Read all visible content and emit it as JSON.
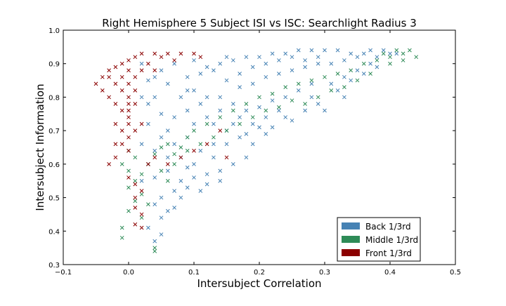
{
  "chart_data": {
    "type": "scatter",
    "title": "Right Hemisphere 5 Subject ISI vs ISC: Searchlight Radius 3",
    "xlabel": "Intersubject Correlation",
    "ylabel": "Intersubject Information",
    "xlim": [
      -0.1,
      0.5
    ],
    "ylim": [
      0.3,
      1.0
    ],
    "xticks": [
      "−0.1",
      "0.0",
      "0.1",
      "0.2",
      "0.3",
      "0.4",
      "0.5"
    ],
    "yticks": [
      "0.3",
      "0.4",
      "0.5",
      "0.6",
      "0.7",
      "0.8",
      "0.9",
      "1.0"
    ],
    "marker": "x",
    "grid": false,
    "legend_position": "bottom-right",
    "series": [
      {
        "name": "Back 1/3rd",
        "color": "#4682b4",
        "points": [
          [
            0.02,
            0.9
          ],
          [
            0.03,
            0.85
          ],
          [
            0.04,
            0.8
          ],
          [
            0.05,
            0.75
          ],
          [
            0.06,
            0.7
          ],
          [
            0.07,
            0.66
          ],
          [
            0.08,
            0.62
          ],
          [
            0.03,
            0.72
          ],
          [
            0.05,
            0.88
          ],
          [
            0.07,
            0.9
          ],
          [
            0.09,
            0.86
          ],
          [
            0.1,
            0.82
          ],
          [
            0.11,
            0.78
          ],
          [
            0.12,
            0.74
          ],
          [
            0.1,
            0.91
          ],
          [
            0.12,
            0.89
          ],
          [
            0.14,
            0.9
          ],
          [
            0.16,
            0.91
          ],
          [
            0.18,
            0.92
          ],
          [
            0.2,
            0.92
          ],
          [
            0.22,
            0.93
          ],
          [
            0.24,
            0.93
          ],
          [
            0.26,
            0.94
          ],
          [
            0.28,
            0.94
          ],
          [
            0.3,
            0.94
          ],
          [
            0.32,
            0.94
          ],
          [
            0.34,
            0.93
          ],
          [
            0.36,
            0.93
          ],
          [
            0.38,
            0.92
          ],
          [
            0.4,
            0.93
          ],
          [
            0.15,
            0.85
          ],
          [
            0.17,
            0.83
          ],
          [
            0.19,
            0.84
          ],
          [
            0.21,
            0.86
          ],
          [
            0.23,
            0.87
          ],
          [
            0.25,
            0.88
          ],
          [
            0.27,
            0.89
          ],
          [
            0.29,
            0.9
          ],
          [
            0.31,
            0.9
          ],
          [
            0.33,
            0.91
          ],
          [
            0.14,
            0.8
          ],
          [
            0.16,
            0.78
          ],
          [
            0.18,
            0.76
          ],
          [
            0.2,
            0.77
          ],
          [
            0.22,
            0.79
          ],
          [
            0.24,
            0.8
          ],
          [
            0.26,
            0.82
          ],
          [
            0.28,
            0.84
          ],
          [
            0.13,
            0.72
          ],
          [
            0.15,
            0.7
          ],
          [
            0.17,
            0.74
          ],
          [
            0.19,
            0.72
          ],
          [
            0.21,
            0.74
          ],
          [
            0.23,
            0.76
          ],
          [
            0.27,
            0.76
          ],
          [
            0.29,
            0.78
          ],
          [
            0.31,
            0.84
          ],
          [
            0.33,
            0.86
          ],
          [
            0.35,
            0.88
          ],
          [
            0.37,
            0.9
          ],
          [
            0.09,
            0.68
          ],
          [
            0.11,
            0.64
          ],
          [
            0.13,
            0.66
          ],
          [
            0.1,
            0.6
          ],
          [
            0.12,
            0.57
          ],
          [
            0.08,
            0.55
          ],
          [
            0.06,
            0.58
          ],
          [
            0.07,
            0.52
          ],
          [
            0.05,
            0.5
          ],
          [
            0.06,
            0.46
          ],
          [
            0.04,
            0.48
          ],
          [
            0.05,
            0.44
          ],
          [
            0.03,
            0.41
          ],
          [
            0.05,
            0.39
          ],
          [
            0.04,
            0.37
          ],
          [
            0.07,
            0.47
          ],
          [
            0.08,
            0.5
          ],
          [
            0.09,
            0.53
          ],
          [
            0.1,
            0.56
          ],
          [
            0.11,
            0.52
          ],
          [
            0.12,
            0.54
          ],
          [
            0.14,
            0.55
          ],
          [
            0.16,
            0.6
          ],
          [
            0.18,
            0.62
          ],
          [
            0.19,
            0.66
          ],
          [
            0.21,
            0.69
          ],
          [
            0.22,
            0.71
          ],
          [
            0.25,
            0.73
          ],
          [
            0.3,
            0.76
          ],
          [
            0.33,
            0.8
          ],
          [
            0.02,
            0.8
          ],
          [
            0.03,
            0.78
          ],
          [
            0.04,
            0.86
          ],
          [
            0.06,
            0.84
          ],
          [
            0.08,
            0.8
          ],
          [
            0.09,
            0.76
          ],
          [
            0.1,
            0.72
          ],
          [
            0.02,
            0.66
          ],
          [
            0.04,
            0.64
          ],
          [
            0.06,
            0.62
          ],
          [
            0.03,
            0.6
          ],
          [
            0.04,
            0.56
          ],
          [
            0.02,
            0.55
          ],
          [
            0.05,
            0.68
          ],
          [
            0.07,
            0.74
          ],
          [
            0.09,
            0.82
          ],
          [
            0.11,
            0.87
          ],
          [
            0.13,
            0.88
          ],
          [
            0.15,
            0.92
          ],
          [
            0.17,
            0.87
          ],
          [
            0.19,
            0.89
          ],
          [
            0.21,
            0.9
          ],
          [
            0.23,
            0.91
          ],
          [
            0.25,
            0.92
          ],
          [
            0.27,
            0.91
          ],
          [
            0.29,
            0.92
          ],
          [
            0.35,
            0.92
          ],
          [
            0.37,
            0.94
          ],
          [
            0.39,
            0.94
          ],
          [
            0.41,
            0.93
          ],
          [
            0.12,
            0.8
          ],
          [
            0.14,
            0.76
          ],
          [
            0.16,
            0.72
          ],
          [
            0.18,
            0.69
          ],
          [
            0.2,
            0.71
          ],
          [
            0.24,
            0.74
          ],
          [
            0.28,
            0.8
          ],
          [
            0.32,
            0.82
          ],
          [
            0.34,
            0.85
          ],
          [
            0.36,
            0.87
          ],
          [
            0.38,
            0.89
          ],
          [
            0.15,
            0.66
          ],
          [
            0.17,
            0.68
          ],
          [
            0.13,
            0.62
          ],
          [
            0.14,
            0.58
          ],
          [
            0.09,
            0.59
          ]
        ]
      },
      {
        "name": "Middle 1/3rd",
        "color": "#2e8b57",
        "points": [
          [
            0.0,
            0.64
          ],
          [
            0.01,
            0.62
          ],
          [
            -0.01,
            0.6
          ],
          [
            0.0,
            0.58
          ],
          [
            0.02,
            0.57
          ],
          [
            0.01,
            0.55
          ],
          [
            0.0,
            0.53
          ],
          [
            0.02,
            0.51
          ],
          [
            0.01,
            0.49
          ],
          [
            0.03,
            0.48
          ],
          [
            0.0,
            0.46
          ],
          [
            0.02,
            0.44
          ],
          [
            -0.01,
            0.41
          ],
          [
            -0.01,
            0.38
          ],
          [
            0.04,
            0.35
          ],
          [
            0.04,
            0.34
          ],
          [
            0.03,
            0.6
          ],
          [
            0.04,
            0.63
          ],
          [
            0.05,
            0.58
          ],
          [
            0.06,
            0.55
          ],
          [
            0.07,
            0.6
          ],
          [
            0.08,
            0.65
          ],
          [
            0.09,
            0.68
          ],
          [
            0.1,
            0.7
          ],
          [
            0.12,
            0.72
          ],
          [
            0.14,
            0.74
          ],
          [
            0.16,
            0.76
          ],
          [
            0.18,
            0.78
          ],
          [
            0.2,
            0.8
          ],
          [
            0.22,
            0.81
          ],
          [
            0.24,
            0.83
          ],
          [
            0.26,
            0.84
          ],
          [
            0.28,
            0.85
          ],
          [
            0.3,
            0.86
          ],
          [
            0.32,
            0.87
          ],
          [
            0.34,
            0.88
          ],
          [
            0.36,
            0.9
          ],
          [
            0.38,
            0.91
          ],
          [
            0.4,
            0.92
          ],
          [
            0.42,
            0.93
          ],
          [
            0.43,
            0.94
          ],
          [
            0.41,
            0.94
          ],
          [
            0.39,
            0.93
          ],
          [
            0.35,
            0.85
          ],
          [
            0.37,
            0.87
          ],
          [
            0.33,
            0.83
          ],
          [
            0.31,
            0.82
          ],
          [
            0.29,
            0.8
          ],
          [
            0.27,
            0.78
          ],
          [
            0.25,
            0.79
          ],
          [
            0.23,
            0.77
          ],
          [
            0.21,
            0.76
          ],
          [
            0.19,
            0.74
          ],
          [
            0.17,
            0.72
          ],
          [
            0.15,
            0.7
          ],
          [
            0.13,
            0.68
          ],
          [
            0.11,
            0.66
          ],
          [
            0.09,
            0.64
          ],
          [
            0.07,
            0.63
          ],
          [
            0.06,
            0.66
          ],
          [
            0.05,
            0.65
          ],
          [
            0.42,
            0.91
          ],
          [
            0.44,
            0.92
          ],
          [
            0.4,
            0.9
          ]
        ]
      },
      {
        "name": "Front 1/3rd",
        "color": "#8b0000",
        "points": [
          [
            -0.05,
            0.84
          ],
          [
            -0.04,
            0.86
          ],
          [
            -0.03,
            0.88
          ],
          [
            -0.02,
            0.89
          ],
          [
            -0.01,
            0.9
          ],
          [
            0.0,
            0.91
          ],
          [
            0.01,
            0.92
          ],
          [
            0.02,
            0.93
          ],
          [
            0.04,
            0.93
          ],
          [
            0.06,
            0.93
          ],
          [
            0.08,
            0.93
          ],
          [
            0.1,
            0.93
          ],
          [
            0.11,
            0.92
          ],
          [
            -0.04,
            0.82
          ],
          [
            -0.03,
            0.8
          ],
          [
            -0.02,
            0.78
          ],
          [
            -0.01,
            0.76
          ],
          [
            0.0,
            0.74
          ],
          [
            -0.02,
            0.72
          ],
          [
            -0.01,
            0.7
          ],
          [
            0.0,
            0.68
          ],
          [
            -0.01,
            0.66
          ],
          [
            0.0,
            0.64
          ],
          [
            -0.02,
            0.62
          ],
          [
            -0.03,
            0.6
          ],
          [
            0.0,
            0.84
          ],
          [
            0.01,
            0.86
          ],
          [
            0.0,
            0.88
          ],
          [
            -0.01,
            0.86
          ],
          [
            0.01,
            0.82
          ],
          [
            0.0,
            0.8
          ],
          [
            0.01,
            0.78
          ],
          [
            0.0,
            0.76
          ],
          [
            -0.02,
            0.84
          ],
          [
            -0.03,
            0.86
          ],
          [
            -0.01,
            0.82
          ],
          [
            0.0,
            0.72
          ],
          [
            0.01,
            0.7
          ],
          [
            0.02,
            0.72
          ],
          [
            0.0,
            0.56
          ],
          [
            0.01,
            0.54
          ],
          [
            0.02,
            0.52
          ],
          [
            0.01,
            0.5
          ],
          [
            0.01,
            0.47
          ],
          [
            0.02,
            0.45
          ],
          [
            0.01,
            0.42
          ],
          [
            0.02,
            0.41
          ],
          [
            0.03,
            0.6
          ],
          [
            0.04,
            0.62
          ],
          [
            0.06,
            0.6
          ],
          [
            0.08,
            0.62
          ],
          [
            0.1,
            0.64
          ],
          [
            0.12,
            0.66
          ],
          [
            0.14,
            0.7
          ],
          [
            0.15,
            0.62
          ],
          [
            0.05,
            0.92
          ],
          [
            0.07,
            0.91
          ],
          [
            0.03,
            0.9
          ],
          [
            0.02,
            0.88
          ],
          [
            0.04,
            0.88
          ],
          [
            0.0,
            0.78
          ],
          [
            -0.02,
            0.66
          ]
        ]
      }
    ]
  }
}
